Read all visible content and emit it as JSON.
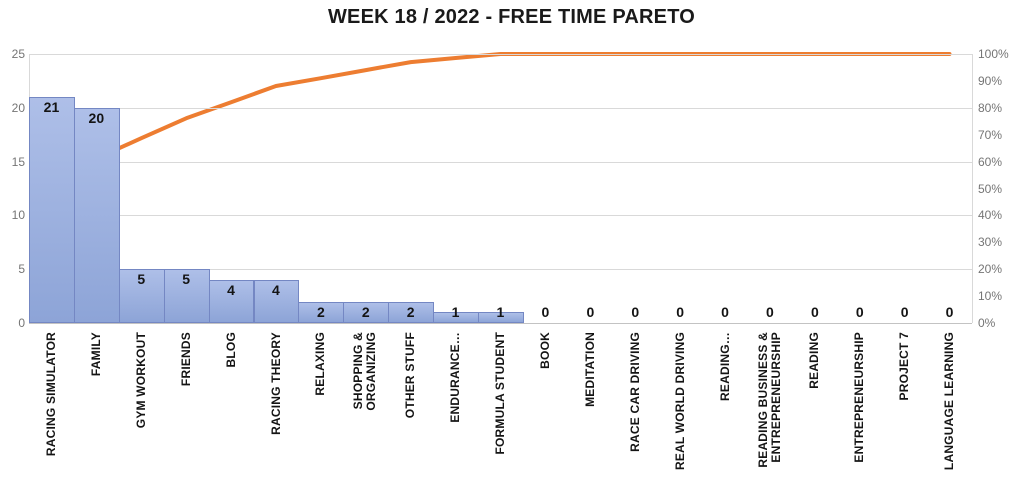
{
  "chart_data": {
    "type": "pareto",
    "title": "WEEK 18 / 2022 - FREE TIME PARETO",
    "categories": [
      "RACING SIMULATOR",
      "FAMILY",
      "GYM WORKOUT",
      "FRIENDS",
      "BLOG",
      "RACING THEORY",
      "RELAXING",
      "SHOPPING &\nORGANIZING",
      "OTHER STUFF",
      "ENDURANCE…",
      "FORMULA STUDENT",
      "BOOK",
      "MEDITATION",
      "RACE CAR DRIVING",
      "REAL WORLD DRIVING",
      "READING…",
      "READING BUSINESS &\nENTREPRENEURSHIP",
      "READING",
      "ENTREPRENEURSHIP",
      "PROJECT 7",
      "LANGUAGE LEARNING"
    ],
    "series": [
      {
        "name": "hours",
        "type": "bar",
        "values": [
          21,
          20,
          5,
          5,
          4,
          4,
          2,
          2,
          2,
          1,
          1,
          0,
          0,
          0,
          0,
          0,
          0,
          0,
          0,
          0,
          0
        ]
      },
      {
        "name": "cumulative-percent",
        "type": "line",
        "values": [
          31.3,
          61.2,
          68.7,
          76.1,
          82.1,
          88.1,
          91.0,
          94.0,
          97.0,
          98.5,
          100,
          100,
          100,
          100,
          100,
          100,
          100,
          100,
          100,
          100,
          100
        ]
      }
    ],
    "left_axis": {
      "min": 0,
      "max": 25,
      "ticks": [
        "0",
        "5",
        "10",
        "15",
        "20",
        "25"
      ],
      "grid_values": [
        5,
        10,
        15,
        20,
        25
      ]
    },
    "right_axis": {
      "min": 0,
      "max": 100,
      "ticks": [
        "0%",
        "10%",
        "20%",
        "30%",
        "40%",
        "50%",
        "60%",
        "70%",
        "80%",
        "90%",
        "100%"
      ]
    },
    "legend": "none",
    "grid": "horizontal",
    "colors": {
      "bar_fill_top": "#aebfe8",
      "bar_fill_bottom": "#8da4d7",
      "bar_border": "#7487c3",
      "line": "#ed7d31",
      "grid": "#d9d9d9",
      "axis_line": "#c3c3c3",
      "tick_text": "#757575",
      "value_text": "#141414",
      "title_text": "#1a1a1a",
      "background": "#ffffff"
    }
  }
}
